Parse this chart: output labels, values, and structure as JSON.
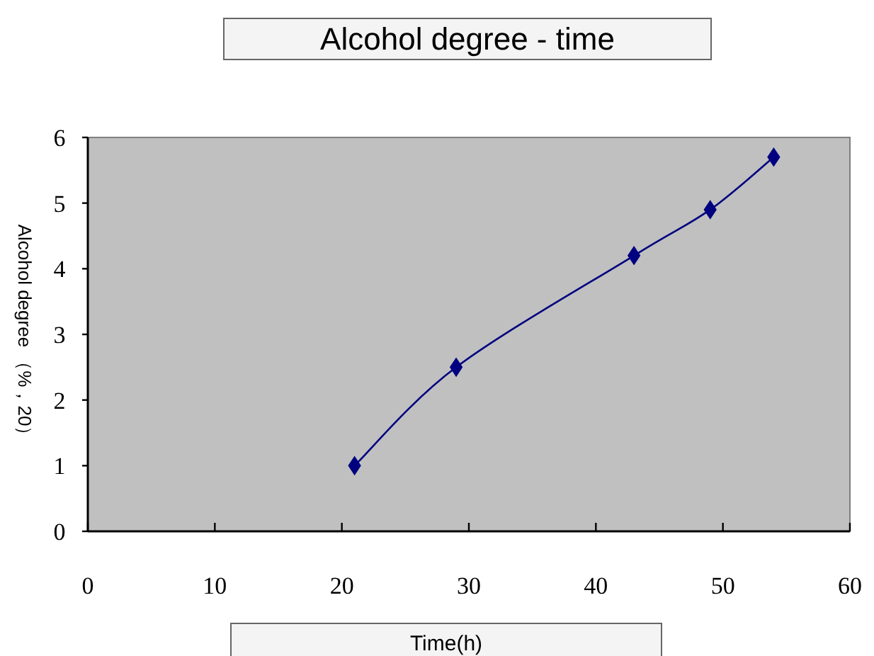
{
  "chart_data": {
    "type": "line",
    "title": "Alcohol degree - time",
    "xlabel": "Time(h)",
    "ylabel": "Alcohol degree （%，20）",
    "x": [
      21,
      29,
      43,
      49,
      54
    ],
    "series": [
      {
        "color": "#000080",
        "values": [
          1.0,
          2.5,
          4.2,
          4.9,
          5.7
        ]
      }
    ],
    "xlim": [
      0,
      60
    ],
    "xticks": [
      0,
      10,
      20,
      30,
      40,
      50,
      60
    ],
    "ylim": [
      0,
      6
    ],
    "yticks": [
      0,
      1,
      2,
      3,
      4,
      5,
      6
    ],
    "marker": "diamond",
    "line_style": "solid"
  }
}
